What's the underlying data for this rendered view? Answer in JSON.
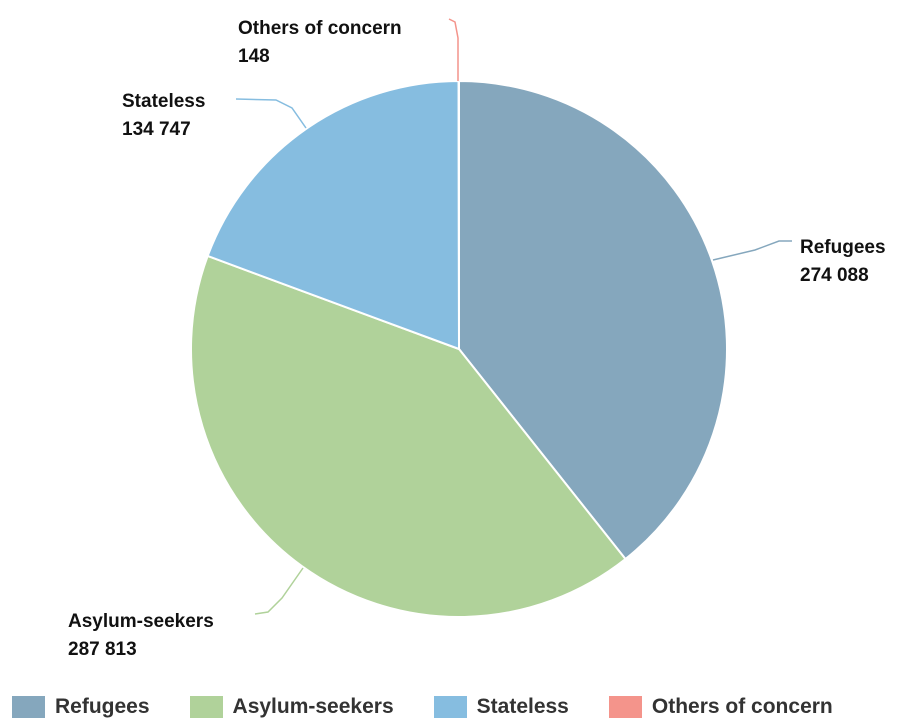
{
  "chart_data": {
    "type": "pie",
    "title": "",
    "slices": [
      {
        "name": "Refugees",
        "value": 274088,
        "value_label": "274 088",
        "color": "#85a7bd"
      },
      {
        "name": "Asylum-seekers",
        "value": 287813,
        "value_label": "287 813",
        "color": "#b0d29a"
      },
      {
        "name": "Stateless",
        "value": 134747,
        "value_label": "134 747",
        "color": "#86bde0"
      },
      {
        "name": "Others of concern",
        "value": 148,
        "value_label": "148",
        "color": "#f4948b"
      }
    ],
    "legend_position": "bottom",
    "start_angle": "top",
    "direction": "clockwise"
  }
}
